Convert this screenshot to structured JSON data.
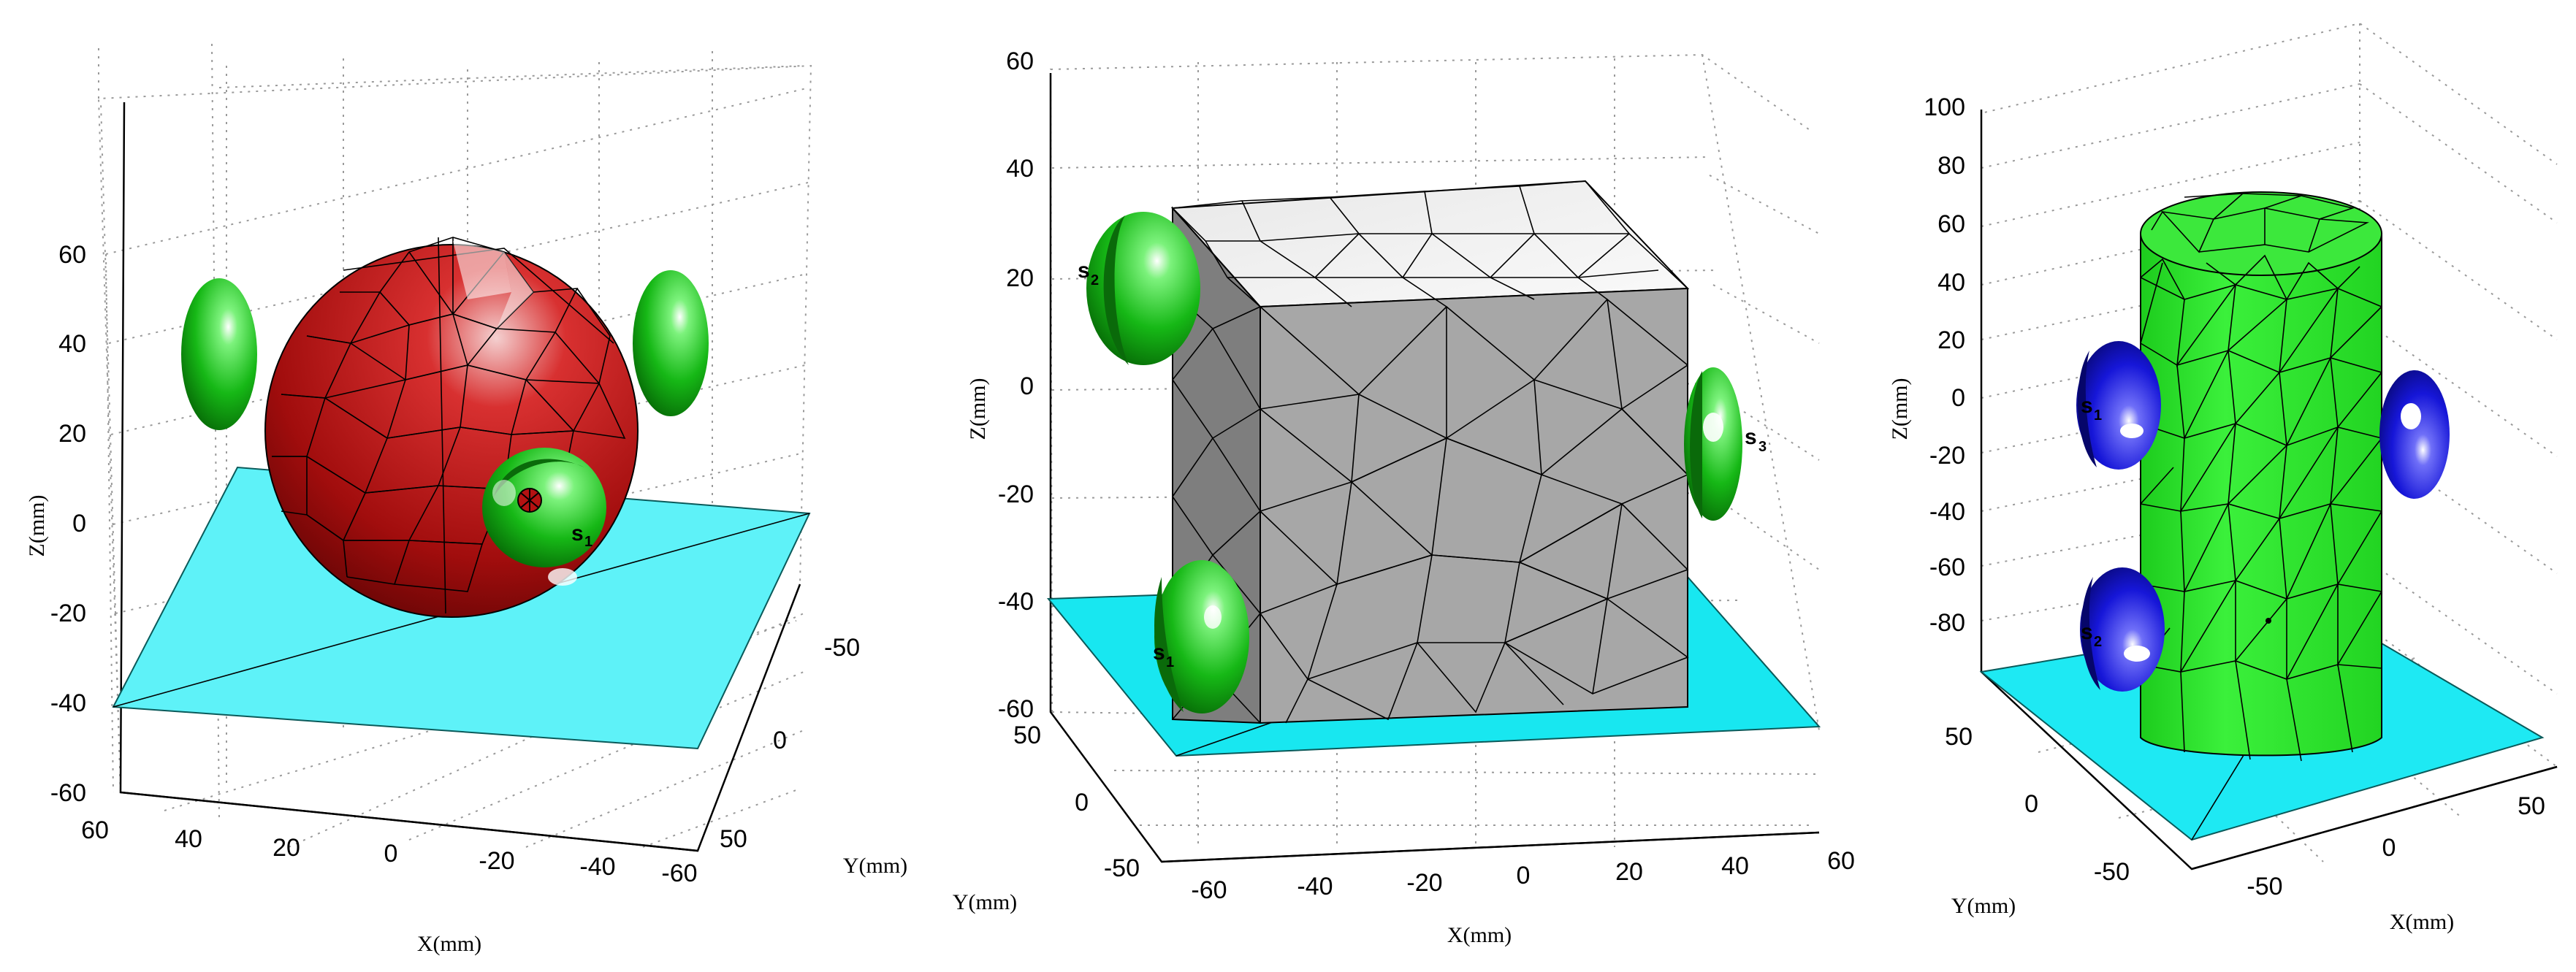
{
  "panels": [
    {
      "id": "sphere",
      "z_ticks": [
        "60",
        "40",
        "20",
        "0",
        "-20",
        "-40",
        "-60"
      ],
      "x_ticks": [
        "60",
        "40",
        "20",
        "0",
        "-20",
        "-40",
        "-60"
      ],
      "y_ticks": [
        "-50",
        "0",
        "50"
      ],
      "xlabel": "X(mm)",
      "ylabel": "Y(mm)",
      "zlabel": "Z(mm)",
      "object_color": "#b51212",
      "sensor_color": "#12b812",
      "plane_color": "#5ef2f8",
      "sensor_labels": [
        {
          "letter": "s",
          "sub": "1"
        }
      ]
    },
    {
      "id": "cube",
      "z_ticks": [
        "60",
        "40",
        "20",
        "0",
        "-20",
        "-40",
        "-60"
      ],
      "x_ticks": [
        "-60",
        "-40",
        "-20",
        "0",
        "20",
        "40",
        "60"
      ],
      "y_ticks": [
        "50",
        "0",
        "-50"
      ],
      "xlabel": "X(mm)",
      "ylabel": "Y(mm)",
      "zlabel": "Z(mm)",
      "object_color": "#a9a9a9",
      "sensor_color": "#12b812",
      "plane_color": "#18e7f0",
      "sensor_labels": [
        {
          "letter": "s",
          "sub": "2"
        },
        {
          "letter": "s",
          "sub": "3"
        },
        {
          "letter": "s",
          "sub": "1"
        }
      ]
    },
    {
      "id": "cylinder",
      "z_ticks": [
        "100",
        "80",
        "60",
        "40",
        "20",
        "0",
        "-20",
        "-40",
        "-60",
        "-80"
      ],
      "x_ticks": [
        "-50",
        "0",
        "50"
      ],
      "y_ticks": [
        "50",
        "0",
        "-50"
      ],
      "xlabel": "X(mm)",
      "ylabel": "Y(mm)",
      "zlabel": "Z(mm)",
      "object_color": "#2ee62e",
      "sensor_color": "#1414d8",
      "plane_color": "#1ee9f3",
      "sensor_labels": [
        {
          "letter": "s",
          "sub": "1"
        },
        {
          "letter": "s",
          "sub": "2"
        }
      ]
    }
  ]
}
